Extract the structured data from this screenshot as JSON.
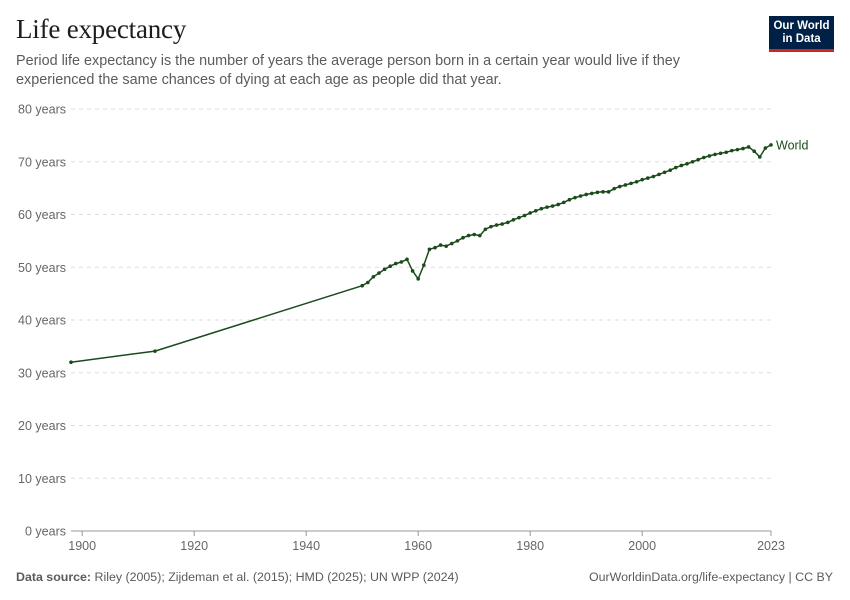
{
  "header": {
    "title": "Life expectancy",
    "subtitle": "Period life expectancy is the number of years the average person born in a certain year would live if they experienced the same chances of dying at each age as people did that year."
  },
  "logo": {
    "line1": "Our World",
    "line2": "in Data"
  },
  "footer": {
    "source_label": "Data source:",
    "source_text": "Riley (2005); Zijdeman et al. (2015); HMD (2025); UN WPP (2024)",
    "credit": "OurWorldinData.org/life-expectancy | CC BY"
  },
  "colors": {
    "series": "#1b4a1b",
    "grid": "#dddddd",
    "axis": "#666666",
    "logo_bg": "#002147",
    "logo_accent": "#ce261e"
  },
  "chart_data": {
    "type": "line",
    "title": "Life expectancy",
    "xlim": [
      1898,
      2023
    ],
    "ylim": [
      0,
      80
    ],
    "x_ticks": [
      1900,
      1920,
      1940,
      1960,
      1980,
      2000,
      2023
    ],
    "y_ticks": [
      {
        "value": 0,
        "label": "0 years"
      },
      {
        "value": 10,
        "label": "10 years"
      },
      {
        "value": 20,
        "label": "20 years"
      },
      {
        "value": 30,
        "label": "30 years"
      },
      {
        "value": 40,
        "label": "40 years"
      },
      {
        "value": 50,
        "label": "50 years"
      },
      {
        "value": 60,
        "label": "60 years"
      },
      {
        "value": 70,
        "label": "70 years"
      },
      {
        "value": 80,
        "label": "80 years"
      }
    ],
    "grid": "horizontal-dashed",
    "series": [
      {
        "name": "World",
        "x": [
          1898,
          1913,
          1950,
          1951,
          1952,
          1953,
          1954,
          1955,
          1956,
          1957,
          1958,
          1959,
          1960,
          1961,
          1962,
          1963,
          1964,
          1965,
          1966,
          1967,
          1968,
          1969,
          1970,
          1971,
          1972,
          1973,
          1974,
          1975,
          1976,
          1977,
          1978,
          1979,
          1980,
          1981,
          1982,
          1983,
          1984,
          1985,
          1986,
          1987,
          1988,
          1989,
          1990,
          1991,
          1992,
          1993,
          1994,
          1995,
          1996,
          1997,
          1998,
          1999,
          2000,
          2001,
          2002,
          2003,
          2004,
          2005,
          2006,
          2007,
          2008,
          2009,
          2010,
          2011,
          2012,
          2013,
          2014,
          2015,
          2016,
          2017,
          2018,
          2019,
          2020,
          2021,
          2022,
          2023
        ],
        "values": [
          32.0,
          34.1,
          46.5,
          47.1,
          48.2,
          48.9,
          49.6,
          50.2,
          50.7,
          51.0,
          51.5,
          49.3,
          47.8,
          50.4,
          53.4,
          53.7,
          54.2,
          54.0,
          54.5,
          55.0,
          55.6,
          56.0,
          56.2,
          56.0,
          57.2,
          57.7,
          58.0,
          58.2,
          58.5,
          59.0,
          59.4,
          59.8,
          60.3,
          60.7,
          61.1,
          61.4,
          61.6,
          61.9,
          62.3,
          62.8,
          63.2,
          63.5,
          63.8,
          64.0,
          64.2,
          64.3,
          64.3,
          64.9,
          65.3,
          65.6,
          65.9,
          66.2,
          66.6,
          66.9,
          67.2,
          67.6,
          68.0,
          68.4,
          68.9,
          69.3,
          69.6,
          70.0,
          70.4,
          70.8,
          71.1,
          71.4,
          71.6,
          71.8,
          72.1,
          72.3,
          72.5,
          72.8,
          72.0,
          70.9,
          72.6,
          73.2
        ]
      }
    ]
  }
}
